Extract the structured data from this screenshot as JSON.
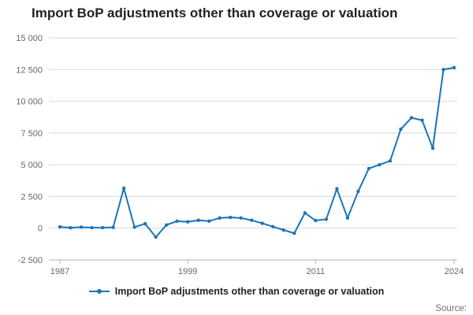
{
  "title": "Import BoP adjustments other than coverage or valuation",
  "legend": {
    "label": "Import BoP adjustments other than coverage or valuation"
  },
  "source": "Source:",
  "colors": {
    "line": "#1976b8",
    "grid": "#d9d9d9",
    "axis": "#b0b0b0",
    "tick_text": "#666666",
    "title_text": "#222222",
    "source_text": "#707070"
  },
  "chart_data": {
    "type": "line",
    "title": "Import BoP adjustments other than coverage or valuation",
    "xlabel": "",
    "ylabel": "",
    "legend_position": "bottom",
    "grid": true,
    "ylim": [
      -2500,
      15000
    ],
    "yticks": [
      -2500,
      0,
      2500,
      5000,
      7500,
      10000,
      12500,
      15000
    ],
    "ytick_labels": [
      "-2 500",
      "0",
      "2 500",
      "5 000",
      "7 500",
      "10 000",
      "12 500",
      "15 000"
    ],
    "xticks": [
      1987,
      1999,
      2011,
      2024
    ],
    "xtick_labels": [
      "1987",
      "1999",
      "2011",
      "2024"
    ],
    "x": [
      1987,
      1988,
      1989,
      1990,
      1991,
      1992,
      1993,
      1994,
      1995,
      1996,
      1997,
      1998,
      1999,
      2000,
      2001,
      2002,
      2003,
      2004,
      2005,
      2006,
      2007,
      2008,
      2009,
      2010,
      2011,
      2012,
      2013,
      2014,
      2015,
      2016,
      2017,
      2018,
      2019,
      2020,
      2021,
      2022,
      2023,
      2024
    ],
    "series": [
      {
        "name": "Import BoP adjustments other than coverage or valuation",
        "values": [
          100,
          30,
          80,
          40,
          40,
          60,
          3150,
          80,
          350,
          -700,
          250,
          550,
          500,
          620,
          550,
          800,
          850,
          800,
          620,
          380,
          120,
          -150,
          -400,
          1200,
          600,
          700,
          3100,
          800,
          2900,
          4700,
          5000,
          5300,
          7800,
          8700,
          8500,
          6300,
          12500,
          12650
        ]
      }
    ]
  }
}
